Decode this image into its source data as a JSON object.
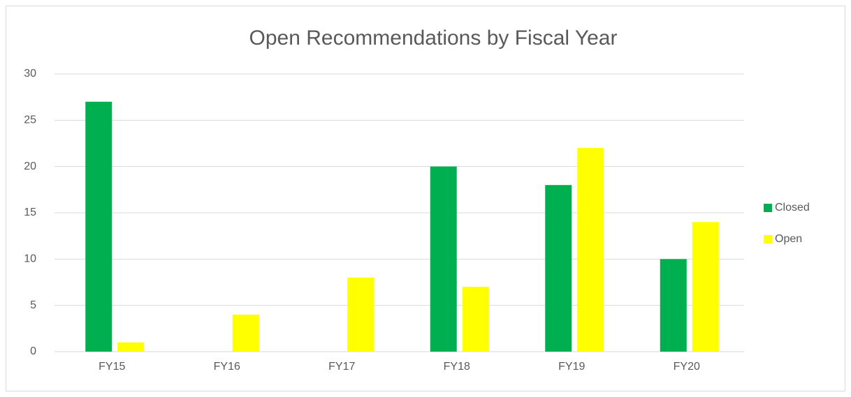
{
  "chart_data": {
    "type": "bar",
    "title": "Open Recommendations by Fiscal Year",
    "categories": [
      "FY15",
      "FY16",
      "FY17",
      "FY18",
      "FY19",
      "FY20"
    ],
    "series": [
      {
        "name": "Closed",
        "color": "#00b050",
        "values": [
          27,
          0,
          0,
          20,
          18,
          10
        ]
      },
      {
        "name": "Open",
        "color": "#ffff00",
        "values": [
          1,
          4,
          8,
          7,
          22,
          14
        ]
      }
    ],
    "ylim": [
      0,
      30
    ],
    "yticks": [
      0,
      5,
      10,
      15,
      20,
      25,
      30
    ],
    "grid": true,
    "legend": "right"
  }
}
